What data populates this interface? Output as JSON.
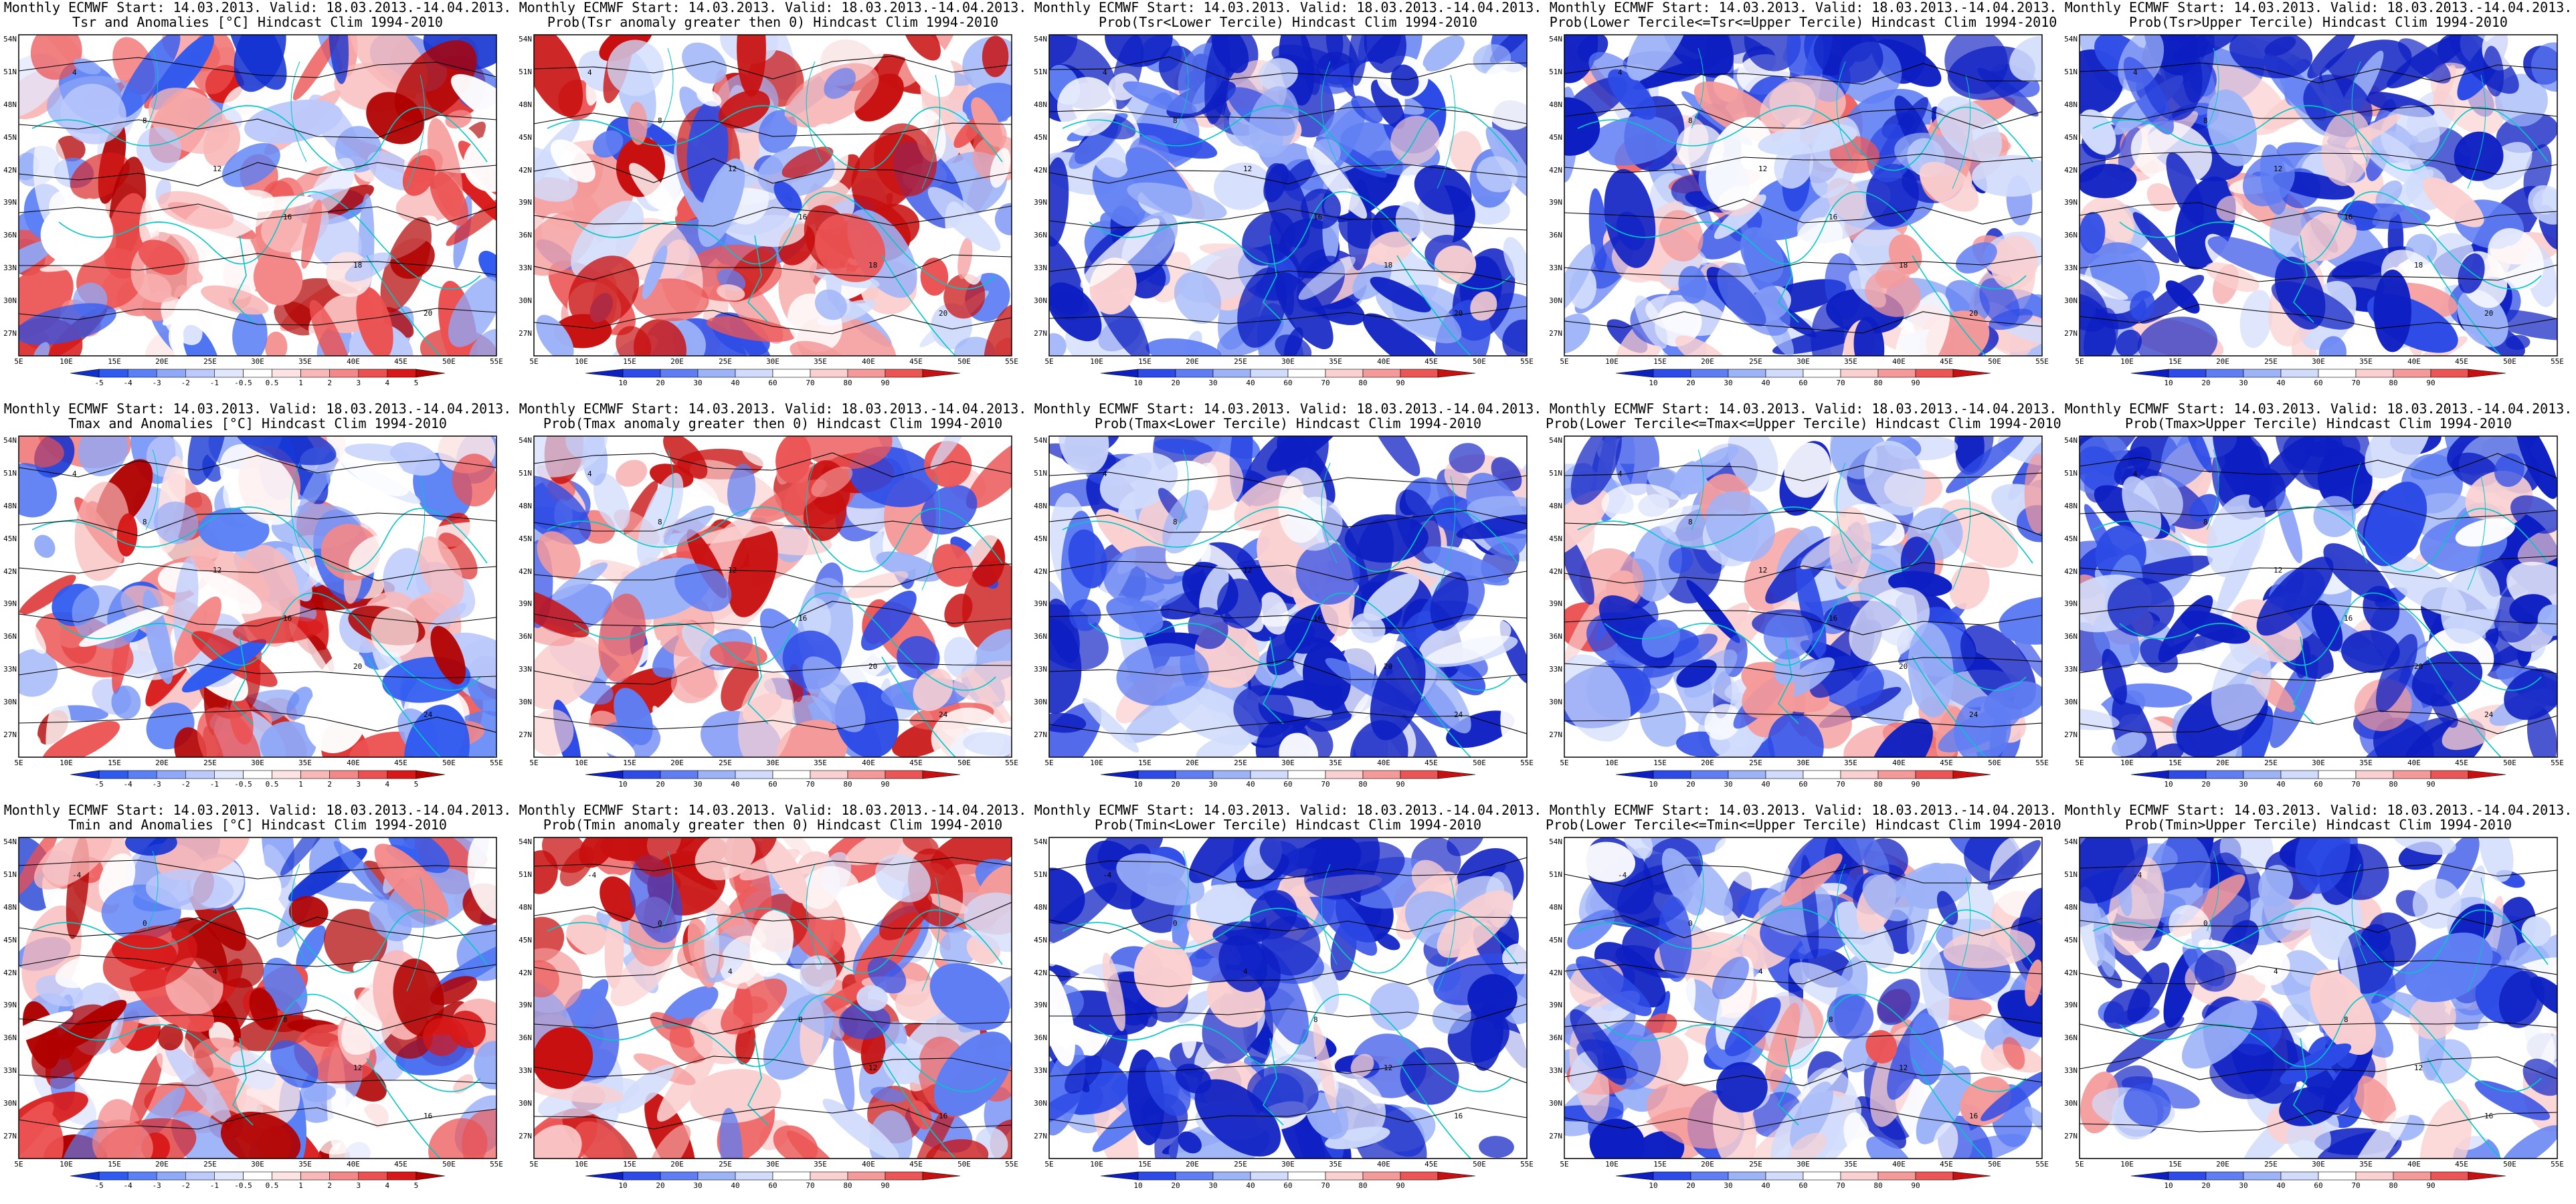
{
  "header": "Monthly ECMWF Start: 14.03.2013. Valid: 18.03.2013.-14.04.2013.",
  "lon_labels": [
    "5E",
    "10E",
    "15E",
    "20E",
    "25E",
    "30E",
    "35E",
    "40E",
    "45E",
    "50E",
    "55E"
  ],
  "lat_labels": [
    "54N",
    "51N",
    "48N",
    "45N",
    "42N",
    "39N",
    "36N",
    "33N",
    "30N",
    "27N"
  ],
  "anomaly_scale": {
    "labels": [
      "-5",
      "-4",
      "-3",
      "-2",
      "-1",
      "-0.5",
      "0.5",
      "1",
      "2",
      "3",
      "4",
      "5"
    ],
    "colors": [
      "#1030d0",
      "#2f5af0",
      "#5a80f5",
      "#8fa8f8",
      "#bcc9fb",
      "#e1e7fd",
      "#ffffff",
      "#fde3e3",
      "#f9b8b8",
      "#f48888",
      "#ec5050",
      "#d81818",
      "#b00000"
    ]
  },
  "prob_scale": {
    "labels": [
      "10",
      "20",
      "30",
      "40",
      "60",
      "70",
      "80",
      "90"
    ],
    "colors": [
      "#0d1fc2",
      "#2d4be6",
      "#5f7ef3",
      "#9db3f8",
      "#d1dcfc",
      "#ffffff",
      "#fbd0d0",
      "#f59a9a",
      "#ec5555",
      "#c81010"
    ]
  },
  "panels": [
    {
      "subtitle": "Tsr and Anomalies [°C] Hindcast Clim 1994-2010",
      "kind": "anomaly",
      "bias": 0.15,
      "seed": 11,
      "contours": [
        "4",
        "8",
        "12",
        "16",
        "18",
        "20"
      ]
    },
    {
      "subtitle": "Prob(Tsr anomaly greater then 0) Hindcast Clim 1994-2010",
      "kind": "prob",
      "bias": 0.2,
      "seed": 23,
      "contours": [
        "4",
        "8",
        "12",
        "16",
        "18",
        "20"
      ]
    },
    {
      "subtitle": "Prob(Tsr<Lower Tercile) Hindcast Clim 1994-2010",
      "kind": "prob",
      "bias": -0.55,
      "seed": 37,
      "contours": [
        "4",
        "8",
        "12",
        "16",
        "18",
        "20"
      ]
    },
    {
      "subtitle": "Prob(Lower Tercile<=Tsr<=Upper Tercile) Hindcast Clim 1994-2010",
      "kind": "prob",
      "bias": -0.3,
      "seed": 41,
      "contours": [
        "4",
        "8",
        "12",
        "16",
        "18",
        "20"
      ]
    },
    {
      "subtitle": "Prob(Tsr>Upper Tercile) Hindcast Clim 1994-2010",
      "kind": "prob",
      "bias": -0.45,
      "seed": 53,
      "contours": [
        "4",
        "8",
        "12",
        "16",
        "18",
        "20"
      ]
    },
    {
      "subtitle": "Tmax and Anomalies [°C] Hindcast Clim 1994-2010",
      "kind": "anomaly",
      "bias": 0.1,
      "seed": 61,
      "contours": [
        "4",
        "8",
        "12",
        "16",
        "20",
        "24"
      ]
    },
    {
      "subtitle": "Prob(Tmax anomaly greater then 0) Hindcast Clim 1994-2010",
      "kind": "prob",
      "bias": 0.15,
      "seed": 71,
      "contours": [
        "4",
        "8",
        "12",
        "16",
        "20",
        "24"
      ]
    },
    {
      "subtitle": "Prob(Tmax<Lower Tercile) Hindcast Clim 1994-2010",
      "kind": "prob",
      "bias": -0.6,
      "seed": 83,
      "contours": [
        "4",
        "8",
        "12",
        "16",
        "20",
        "24"
      ]
    },
    {
      "subtitle": "Prob(Lower Tercile<=Tmax<=Upper Tercile) Hindcast Clim 1994-2010",
      "kind": "prob",
      "bias": -0.3,
      "seed": 97,
      "contours": [
        "4",
        "8",
        "12",
        "16",
        "20",
        "24"
      ]
    },
    {
      "subtitle": "Prob(Tmax>Upper Tercile) Hindcast Clim 1994-2010",
      "kind": "prob",
      "bias": -0.5,
      "seed": 101,
      "contours": [
        "4",
        "8",
        "12",
        "16",
        "20",
        "24"
      ]
    },
    {
      "subtitle": "Tmin and Anomalies [°C] Hindcast Clim 1994-2010",
      "kind": "anomaly",
      "bias": 0.2,
      "seed": 113,
      "contours": [
        "-4",
        "0",
        "4",
        "8",
        "12",
        "16"
      ]
    },
    {
      "subtitle": "Prob(Tmin anomaly greater then 0) Hindcast Clim 1994-2010",
      "kind": "prob",
      "bias": 0.3,
      "seed": 127,
      "contours": [
        "-4",
        "0",
        "4",
        "8",
        "12",
        "16"
      ]
    },
    {
      "subtitle": "Prob(Tmin<Lower Tercile) Hindcast Clim 1994-2010",
      "kind": "prob",
      "bias": -0.6,
      "seed": 131,
      "contours": [
        "-4",
        "0",
        "4",
        "8",
        "12",
        "16"
      ]
    },
    {
      "subtitle": "Prob(Lower Tercile<=Tmin<=Upper Tercile) Hindcast Clim 1994-2010",
      "kind": "prob",
      "bias": -0.3,
      "seed": 149,
      "contours": [
        "-4",
        "0",
        "4",
        "8",
        "12",
        "16"
      ]
    },
    {
      "subtitle": "Prob(Tmin>Upper Tercile) Hindcast Clim 1994-2010",
      "kind": "prob",
      "bias": -0.45,
      "seed": 157,
      "contours": [
        "-4",
        "0",
        "4",
        "8",
        "12",
        "16"
      ]
    }
  ]
}
